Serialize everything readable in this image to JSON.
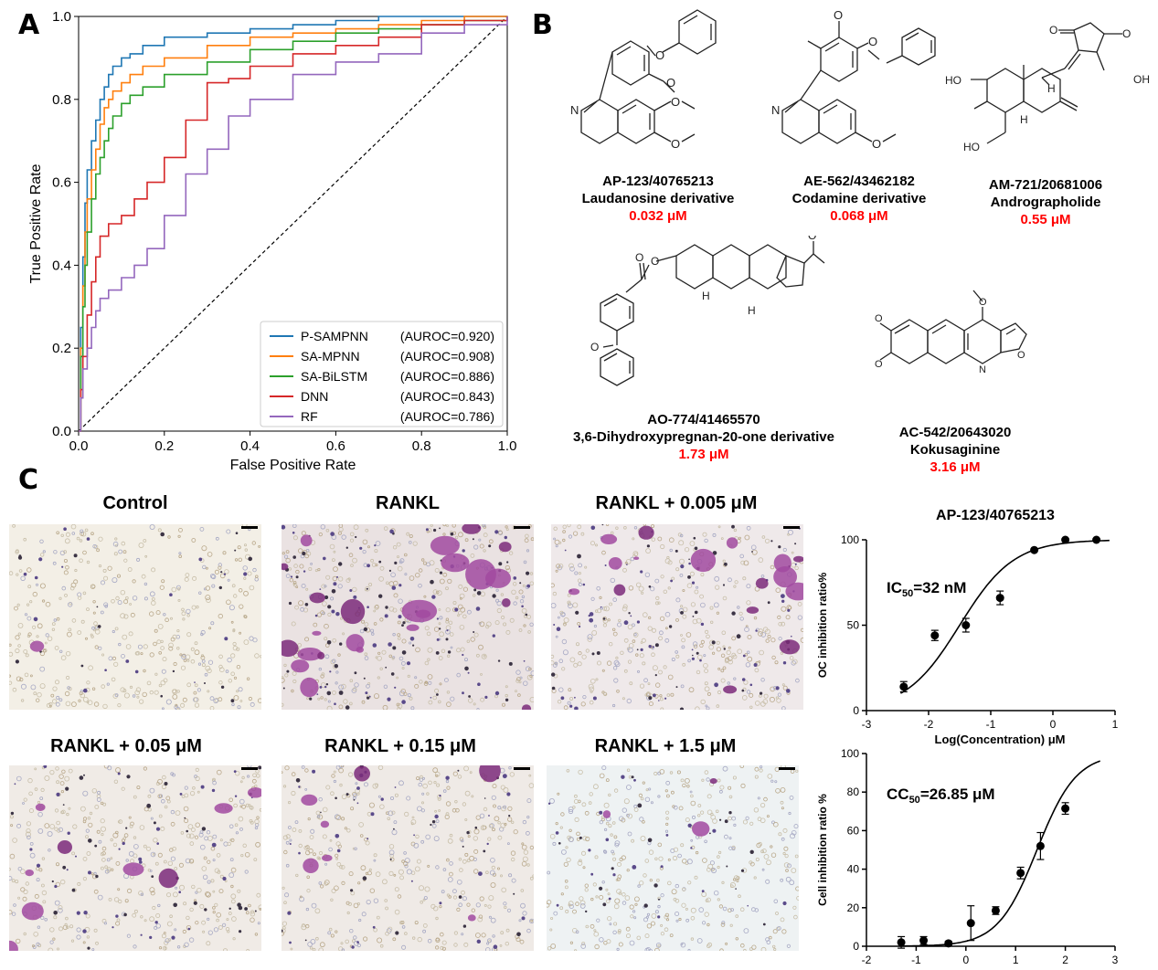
{
  "panels": {
    "a": "A",
    "b": "B",
    "c": "C"
  },
  "chart_data": [
    {
      "type": "line",
      "xlabel": "False Positive Rate",
      "ylabel": "True Positive Rate",
      "xlim": [
        0.0,
        1.0
      ],
      "ylim": [
        0.0,
        1.0
      ],
      "xticks": [
        "0.0",
        "0.2",
        "0.4",
        "0.6",
        "0.8",
        "1.0"
      ],
      "yticks": [
        "0.0",
        "0.2",
        "0.4",
        "0.6",
        "0.8",
        "1.0"
      ],
      "legend_position": "bottom-right",
      "diagonal": "dashed",
      "series": [
        {
          "name": "P-SAMPNN",
          "auroc": "(AUROC=0.920)",
          "color": "#1f77b4",
          "x": [
            0,
            0.005,
            0.01,
            0.015,
            0.02,
            0.03,
            0.04,
            0.05,
            0.06,
            0.07,
            0.08,
            0.1,
            0.12,
            0.15,
            0.2,
            0.3,
            0.4,
            0.5,
            0.6,
            0.7,
            0.8,
            0.9,
            1.0
          ],
          "y": [
            0,
            0.25,
            0.42,
            0.55,
            0.63,
            0.7,
            0.75,
            0.8,
            0.83,
            0.86,
            0.88,
            0.9,
            0.91,
            0.93,
            0.95,
            0.96,
            0.97,
            0.98,
            0.99,
            1.0,
            1.0,
            1.0,
            1.0
          ]
        },
        {
          "name": "SA-MPNN",
          "auroc": "(AUROC=0.908)",
          "color": "#ff7f0e",
          "x": [
            0,
            0.005,
            0.01,
            0.015,
            0.02,
            0.03,
            0.04,
            0.05,
            0.06,
            0.07,
            0.08,
            0.1,
            0.12,
            0.15,
            0.2,
            0.3,
            0.4,
            0.5,
            0.6,
            0.7,
            0.8,
            0.9,
            1.0
          ],
          "y": [
            0,
            0.2,
            0.35,
            0.48,
            0.56,
            0.63,
            0.68,
            0.74,
            0.78,
            0.8,
            0.82,
            0.84,
            0.86,
            0.88,
            0.9,
            0.93,
            0.95,
            0.96,
            0.97,
            0.98,
            0.99,
            1.0,
            1.0
          ]
        },
        {
          "name": "SA-BiLSTM",
          "auroc": "(AUROC=0.886)",
          "color": "#2ca02c",
          "x": [
            0,
            0.005,
            0.01,
            0.015,
            0.02,
            0.03,
            0.04,
            0.05,
            0.06,
            0.07,
            0.08,
            0.1,
            0.12,
            0.15,
            0.2,
            0.3,
            0.4,
            0.5,
            0.6,
            0.7,
            0.8,
            0.9,
            1.0
          ],
          "y": [
            0,
            0.18,
            0.3,
            0.4,
            0.48,
            0.56,
            0.62,
            0.66,
            0.7,
            0.73,
            0.76,
            0.79,
            0.81,
            0.83,
            0.86,
            0.89,
            0.92,
            0.94,
            0.96,
            0.97,
            0.98,
            0.99,
            1.0
          ]
        },
        {
          "name": "DNN",
          "auroc": "(AUROC=0.843)",
          "color": "#d62728",
          "x": [
            0,
            0.005,
            0.01,
            0.02,
            0.03,
            0.04,
            0.05,
            0.07,
            0.1,
            0.13,
            0.16,
            0.2,
            0.25,
            0.3,
            0.35,
            0.4,
            0.5,
            0.6,
            0.7,
            0.8,
            0.9,
            1.0
          ],
          "y": [
            0,
            0.1,
            0.18,
            0.28,
            0.36,
            0.42,
            0.47,
            0.5,
            0.52,
            0.56,
            0.6,
            0.66,
            0.75,
            0.84,
            0.85,
            0.88,
            0.91,
            0.93,
            0.95,
            0.98,
            0.99,
            1.0
          ]
        },
        {
          "name": "RF",
          "auroc": "(AUROC=0.786)",
          "color": "#9467bd",
          "x": [
            0,
            0.005,
            0.01,
            0.02,
            0.03,
            0.04,
            0.05,
            0.07,
            0.1,
            0.13,
            0.16,
            0.2,
            0.25,
            0.3,
            0.35,
            0.4,
            0.5,
            0.6,
            0.7,
            0.8,
            0.9,
            1.0
          ],
          "y": [
            0,
            0.08,
            0.15,
            0.2,
            0.25,
            0.29,
            0.32,
            0.34,
            0.37,
            0.4,
            0.44,
            0.52,
            0.62,
            0.68,
            0.76,
            0.8,
            0.86,
            0.89,
            0.91,
            0.96,
            0.98,
            1.0
          ]
        }
      ]
    },
    {
      "type": "scatter",
      "title": "AP-123/40765213",
      "xlabel": "Log(Concentration) μM",
      "ylabel": "OC inhibition ratio%",
      "xlim": [
        -3,
        1
      ],
      "ylim": [
        0,
        100
      ],
      "xticks": [
        "-3",
        "-2",
        "-1",
        "0",
        "1"
      ],
      "yticks": [
        "0",
        "50",
        "100"
      ],
      "annotation": {
        "prefix": "IC",
        "sub": "50",
        "suffix": "=32 nM"
      },
      "points": [
        {
          "x": -2.4,
          "y": 14,
          "err": 3
        },
        {
          "x": -1.9,
          "y": 44,
          "err": 3
        },
        {
          "x": -1.4,
          "y": 50,
          "err": 4
        },
        {
          "x": -0.85,
          "y": 66,
          "err": 4
        },
        {
          "x": -0.3,
          "y": 94,
          "err": 0
        },
        {
          "x": 0.2,
          "y": 100,
          "err": 0
        },
        {
          "x": 0.7,
          "y": 100,
          "err": 0
        }
      ],
      "fit": {
        "bottom": 0,
        "top": 100,
        "logIC50": -1.5,
        "hill": 1.0
      }
    },
    {
      "type": "scatter",
      "xlabel": "Log(Concentration) μM",
      "ylabel": "Cell  inhibition ratio %",
      "xlim": [
        -2,
        3
      ],
      "ylim": [
        0,
        100
      ],
      "xticks": [
        "-2",
        "-1",
        "0",
        "1",
        "2",
        "3"
      ],
      "yticks": [
        "0",
        "20",
        "40",
        "60",
        "80",
        "100"
      ],
      "annotation": {
        "prefix": "CC",
        "sub": "50",
        "suffix": "=26.85 μM"
      },
      "points": [
        {
          "x": -1.3,
          "y": 2,
          "err": 3
        },
        {
          "x": -0.85,
          "y": 3,
          "err": 2
        },
        {
          "x": -0.35,
          "y": 1.5,
          "err": 1
        },
        {
          "x": 0.1,
          "y": 12,
          "err": 9
        },
        {
          "x": 0.6,
          "y": 18.5,
          "err": 2
        },
        {
          "x": 1.1,
          "y": 38,
          "err": 3
        },
        {
          "x": 1.5,
          "y": 52,
          "err": 7
        },
        {
          "x": 2.0,
          "y": 71.5,
          "err": 3
        }
      ],
      "fit": {
        "bottom": 0,
        "top": 100,
        "logIC50": 1.43,
        "hill": 1.1
      }
    }
  ],
  "compounds": [
    {
      "id": "AP-123/40765213",
      "name": "Laudanosine derivative",
      "ic50": "0.032 μM"
    },
    {
      "id": "AE-562/43462182",
      "name": "Codamine derivative",
      "ic50": "0.068 μM"
    },
    {
      "id": "AM-721/20681006",
      "name": "Andrographolide",
      "ic50": "0.55 μM"
    },
    {
      "id": "AO-774/41465570",
      "name": "3,6-Dihydroxypregnan-20-one derivative",
      "ic50": "1.73 μM"
    },
    {
      "id": "AC-542/20643020",
      "name": "Kokusaginine",
      "ic50": "3.16 μM"
    }
  ],
  "atom_labels": {
    "n": "N",
    "o": "O",
    "ho": "HO",
    "oh": "OH",
    "h": "H"
  },
  "micrographs": [
    {
      "title": "Control",
      "purple": 0.05
    },
    {
      "title": "RANKL",
      "purple": 0.9
    },
    {
      "title": "RANKL + 0.005 μM",
      "purple": 0.6
    },
    {
      "title": "RANKL  + 0.05 μM",
      "purple": 0.35
    },
    {
      "title": "RANKL + 0.15 μM",
      "purple": 0.25
    },
    {
      "title": "RANKL + 1.5 μM",
      "purple": 0.1
    }
  ]
}
